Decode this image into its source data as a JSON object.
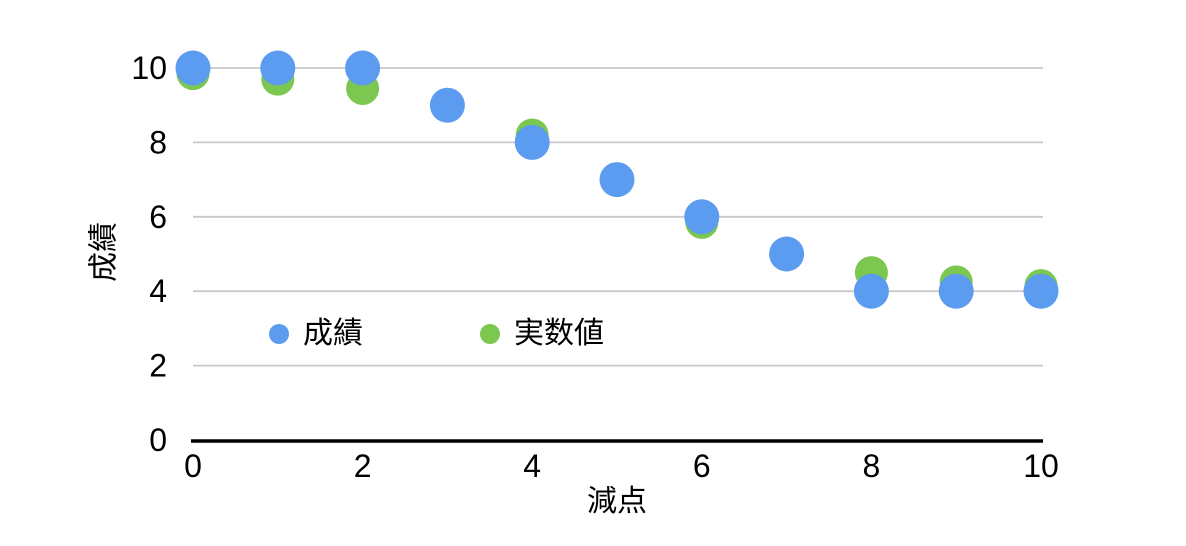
{
  "chart_data": {
    "type": "scatter",
    "title": "",
    "x": [
      0,
      1,
      2,
      3,
      4,
      5,
      6,
      7,
      8,
      9,
      10
    ],
    "series": [
      {
        "name": "成績",
        "color": "#5B9BF0",
        "point_radius": 17.5,
        "values": [
          10,
          10,
          10,
          9,
          8,
          7,
          6,
          5,
          4,
          4,
          4
        ]
      },
      {
        "name": "実数値",
        "color": "#7CC74F",
        "point_radius": 16.5,
        "values": [
          9.85,
          9.7,
          9.45,
          9,
          8.2,
          7,
          5.85,
          5,
          4.5,
          4.25,
          4.15
        ]
      }
    ],
    "xlabel": "減点",
    "ylabel": "成績",
    "x_ticks": [
      0,
      2,
      4,
      6,
      8,
      10
    ],
    "y_ticks": [
      0,
      2,
      4,
      6,
      8,
      10
    ],
    "xlim": [
      0,
      10
    ],
    "ylim": [
      0,
      10
    ],
    "grid": "horizontal",
    "gridline_color": "#C9C9C9",
    "axis_line_color": "#000000",
    "text_color": "#000000",
    "background": "#FFFFFF",
    "legend_position": "inside-bottom-left",
    "z_order_note": "series 成績 (blue) drawn on top of 実数値 (green)"
  },
  "legend": {
    "items": [
      {
        "label": "成績",
        "color": "#5B9BF0"
      },
      {
        "label": "実数値",
        "color": "#7CC74F"
      }
    ]
  }
}
